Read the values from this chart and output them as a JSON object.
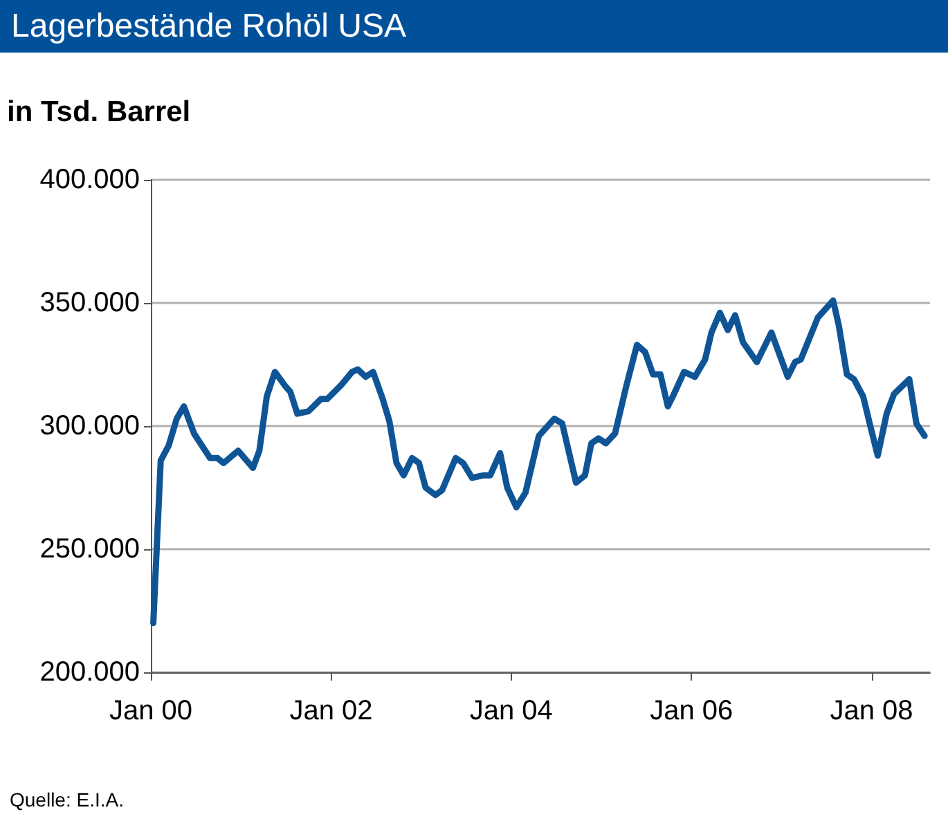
{
  "chart_data": {
    "type": "line",
    "title": "Lagerbestände Rohöl USA",
    "ylabel": "in Tsd. Barrel",
    "annotations": [
      "Quelle: E.I.A."
    ],
    "x": [
      "2000-01-11",
      "2000-02-10",
      "2000-03-13",
      "2000-04-15",
      "2000-05-14",
      "2000-06-24",
      "2000-08-28",
      "2000-09-27",
      "2000-10-22",
      "2000-12-20",
      "2001-02-18",
      "2001-03-16",
      "2001-04-15",
      "2001-05-18",
      "2001-07-01",
      "2001-07-19",
      "2001-08-17",
      "2001-10-01",
      "2001-11-21",
      "2001-12-16",
      "2002-02-14",
      "2002-03-27",
      "2002-04-19",
      "2002-05-21",
      "2002-06-20",
      "2002-07-29",
      "2002-08-25",
      "2002-09-23",
      "2002-10-22",
      "2002-11-25",
      "2002-12-23",
      "2003-01-19",
      "2003-02-28",
      "2003-03-27",
      "2003-05-21",
      "2003-06-20",
      "2003-07-26",
      "2003-09-13",
      "2003-10-08",
      "2003-11-17",
      "2003-12-16",
      "2004-01-22",
      "2004-02-28",
      "2004-04-22",
      "2004-06-24",
      "2004-07-26",
      "2004-09-20",
      "2004-10-26",
      "2004-11-21",
      "2004-12-20",
      "2005-01-19",
      "2005-02-25",
      "2005-04-11",
      "2005-05-25",
      "2005-06-27",
      "2005-07-29",
      "2005-08-28",
      "2005-09-27",
      "2005-10-22",
      "2005-12-02",
      "2006-01-15",
      "2006-02-25",
      "2006-03-23",
      "2006-04-26",
      "2006-05-28",
      "2006-06-27",
      "2006-07-29",
      "2006-09-23",
      "2006-11-21",
      "2007-01-26",
      "2007-02-25",
      "2007-03-20",
      "2007-05-28",
      "2007-07-29",
      "2007-08-21",
      "2007-09-23",
      "2007-10-22",
      "2007-11-28",
      "2007-12-27",
      "2008-01-26",
      "2008-03-02",
      "2008-04-01",
      "2008-06-02",
      "2008-07-01",
      "2008-08-03"
    ],
    "series": [
      {
        "color": "#0f5596",
        "values": [
          220000,
          286000,
          292000,
          303000,
          308000,
          297000,
          287000,
          287000,
          285000,
          290000,
          283000,
          290000,
          312000,
          322000,
          316000,
          314000,
          305000,
          306000,
          311000,
          311000,
          317000,
          322000,
          323000,
          320000,
          322000,
          311000,
          302000,
          285000,
          280000,
          287000,
          285000,
          275000,
          272000,
          274000,
          287000,
          285000,
          279000,
          280000,
          280000,
          289000,
          275000,
          267000,
          273000,
          296000,
          303000,
          301000,
          277000,
          280000,
          293000,
          295000,
          293000,
          297000,
          316000,
          333000,
          330000,
          321000,
          321000,
          308000,
          313000,
          322000,
          320000,
          327000,
          338000,
          346000,
          339000,
          345000,
          334000,
          326000,
          338000,
          320000,
          326000,
          327000,
          344000,
          351000,
          341000,
          321000,
          319000,
          312000,
          300000,
          288000,
          305000,
          313000,
          319000,
          301000,
          296000
        ]
      }
    ],
    "xlim": [
      "2000-01-01",
      "2008-08-25"
    ],
    "xticks": [
      {
        "value": "2000-01-01",
        "label": "Jan 00"
      },
      {
        "value": "2002-01-01",
        "label": "Jan 02"
      },
      {
        "value": "2004-01-01",
        "label": "Jan 04"
      },
      {
        "value": "2006-01-01",
        "label": "Jan 06"
      },
      {
        "value": "2008-01-01",
        "label": "Jan 08"
      }
    ],
    "ylim": [
      200000,
      400000
    ],
    "yticks": [
      {
        "value": 200000,
        "label": "200.000"
      },
      {
        "value": 250000,
        "label": "250.000"
      },
      {
        "value": 300000,
        "label": "300.000"
      },
      {
        "value": 350000,
        "label": "350.000"
      },
      {
        "value": 400000,
        "label": "400.000"
      }
    ],
    "grid": "y",
    "marker": "none",
    "line_style": "solid"
  }
}
